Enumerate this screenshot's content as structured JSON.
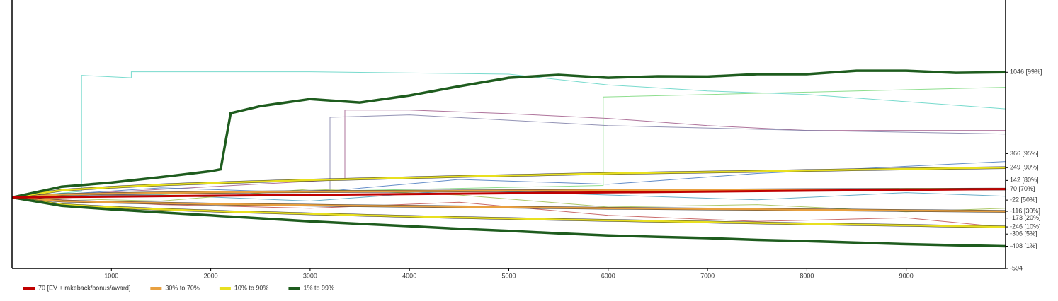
{
  "chart_data": {
    "type": "line",
    "xlim": [
      0,
      10000
    ],
    "ylim": [
      -594,
      1650
    ],
    "xticks": [
      1000,
      2000,
      3000,
      4000,
      5000,
      6000,
      7000,
      8000,
      9000
    ],
    "yticks": [
      {
        "value": 1046,
        "label": "1046 [99%]"
      },
      {
        "value": 366,
        "label": "366 [95%]"
      },
      {
        "value": 249,
        "label": "249 [90%]"
      },
      {
        "value": 142,
        "label": "142 [80%]"
      },
      {
        "value": 70,
        "label": "70 [70%]"
      },
      {
        "value": -22,
        "label": "-22 [50%]"
      },
      {
        "value": -116,
        "label": "-116 [30%]"
      },
      {
        "value": -173,
        "label": "-173 [20%]"
      },
      {
        "value": -246,
        "label": "-246 [10%]"
      },
      {
        "value": -306,
        "label": "-306 [5%]"
      },
      {
        "value": -408,
        "label": "-408 [1%]"
      },
      -594
    ],
    "x": [
      0,
      500,
      1000,
      1500,
      2000,
      2100,
      2200,
      2500,
      3000,
      3500,
      4000,
      4500,
      5000,
      5500,
      6000,
      6500,
      7000,
      7500,
      8000,
      8500,
      9000,
      9500,
      10000
    ],
    "ev": {
      "name": "70 [EV + rakeback/bonus/award]",
      "color": "#c00000",
      "x": [
        0,
        10000
      ],
      "values": [
        0,
        70
      ]
    },
    "bands": [
      {
        "name": "30% to 70%",
        "color": "#e8a040",
        "upper": [
          0,
          25,
          32,
          38,
          42,
          43,
          44,
          46,
          48,
          50,
          52,
          54,
          56,
          58,
          60,
          61,
          62,
          64,
          65,
          66,
          68,
          69,
          70
        ],
        "lower": [
          0,
          -30,
          -40,
          -48,
          -55,
          -56,
          -57,
          -60,
          -65,
          -70,
          -74,
          -78,
          -82,
          -86,
          -90,
          -93,
          -96,
          -100,
          -103,
          -106,
          -110,
          -113,
          -116
        ]
      },
      {
        "name": "10% to 90%",
        "color": "#e8e020",
        "upper": [
          0,
          60,
          85,
          105,
          120,
          123,
          126,
          133,
          145,
          155,
          165,
          175,
          183,
          192,
          200,
          206,
          212,
          218,
          225,
          232,
          238,
          244,
          249
        ],
        "lower": [
          0,
          -60,
          -82,
          -100,
          -113,
          -116,
          -119,
          -125,
          -137,
          -148,
          -158,
          -168,
          -176,
          -184,
          -192,
          -199,
          -206,
          -213,
          -220,
          -227,
          -233,
          -240,
          -246
        ]
      },
      {
        "name": "1% to 99%",
        "color": "#1e5c1e",
        "upper": [
          0,
          90,
          124,
          170,
          219,
          235,
          704,
          763,
          822,
          793,
          852,
          929,
          1000,
          1024,
          1000,
          1012,
          1010,
          1030,
          1030,
          1059,
          1059,
          1041,
          1046
        ],
        "lower": [
          0,
          -70,
          -100,
          -125,
          -150,
          -155,
          -160,
          -175,
          -200,
          -220,
          -240,
          -262,
          -280,
          -300,
          -318,
          -330,
          -340,
          -355,
          -365,
          -378,
          -390,
          -400,
          -408
        ]
      }
    ],
    "samples": [
      {
        "color": "#5fd3c4",
        "x": [
          0,
          700,
          700,
          1200,
          1200,
          3000,
          5000,
          6000,
          7000,
          8000,
          9000,
          10000
        ],
        "values": [
          0,
          50,
          1020,
          1000,
          1050,
          1050,
          1030,
          940,
          890,
          860,
          800,
          740
        ]
      },
      {
        "color": "#a05a8a",
        "x": [
          0,
          3350,
          3350,
          4000,
          5000,
          6000,
          7000,
          8000,
          9000,
          10000
        ],
        "values": [
          0,
          150,
          730,
          730,
          700,
          660,
          600,
          560,
          560,
          560
        ]
      },
      {
        "color": "#7ad87a",
        "x": [
          0,
          5950,
          5950,
          7000,
          8000,
          9000,
          10000
        ],
        "values": [
          0,
          100,
          840,
          860,
          880,
          900,
          920
        ]
      },
      {
        "color": "#8080a8",
        "x": [
          0,
          3200,
          3200,
          4000,
          6000,
          8000,
          10000
        ],
        "values": [
          0,
          60,
          670,
          690,
          600,
          560,
          530
        ]
      },
      {
        "color": "#4a7ac0",
        "x": [
          0,
          1500,
          3000,
          4500,
          6000,
          7500,
          9000,
          10000
        ],
        "values": [
          0,
          80,
          40,
          150,
          110,
          200,
          260,
          300
        ]
      },
      {
        "color": "#c05050",
        "x": [
          0,
          1500,
          3000,
          4500,
          6000,
          7500,
          9000,
          10000
        ],
        "values": [
          0,
          -60,
          -90,
          -40,
          -150,
          -200,
          -170,
          -250
        ]
      },
      {
        "color": "#50a0c0",
        "x": [
          0,
          1500,
          3000,
          4500,
          6000,
          7500,
          9000,
          10000
        ],
        "values": [
          0,
          20,
          -30,
          60,
          20,
          -20,
          40,
          10
        ]
      },
      {
        "color": "#a0c050",
        "x": [
          0,
          1500,
          3000,
          4500,
          6000,
          7500,
          9000,
          10000
        ],
        "values": [
          0,
          -30,
          70,
          20,
          -80,
          -60,
          -120,
          -90
        ]
      }
    ]
  }
}
